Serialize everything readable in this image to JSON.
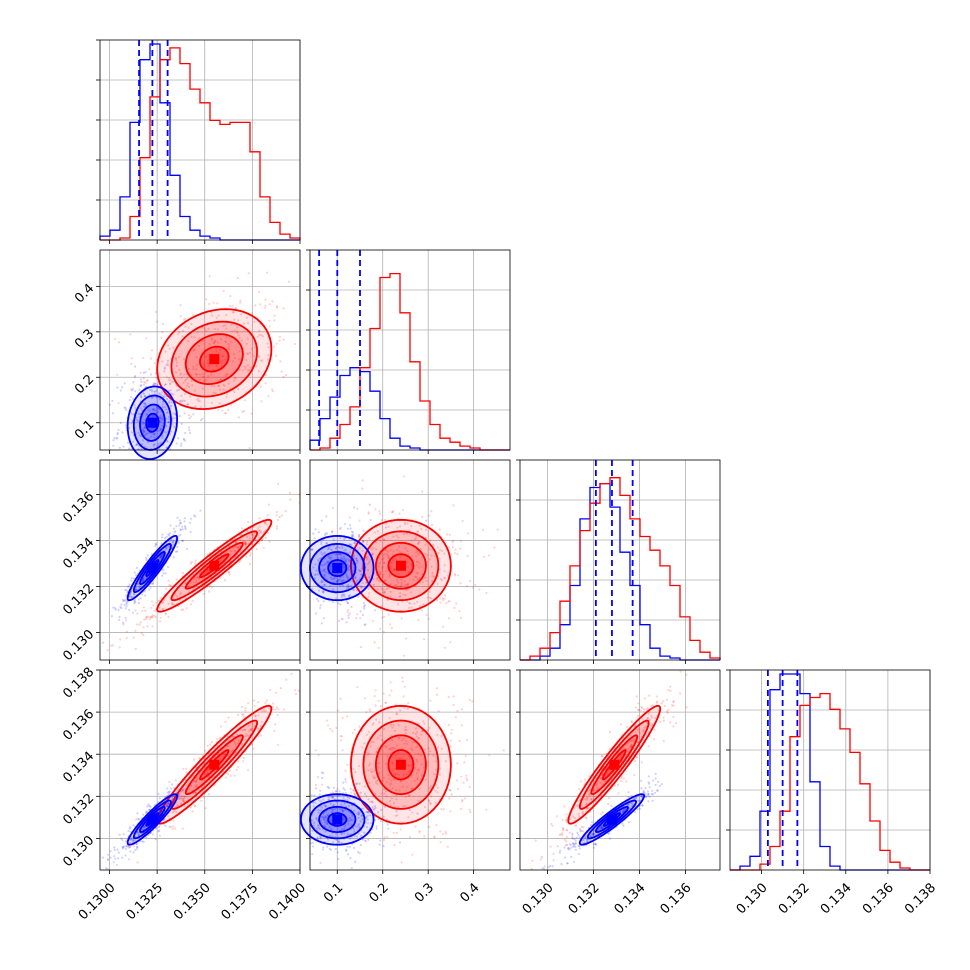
{
  "colors": {
    "blue": "#0000ff",
    "red": "#ff0000",
    "grid": "#b0b0b0"
  },
  "chart_data": {
    "type": "corner",
    "grid": true,
    "params": [
      {
        "id": "p0",
        "range": [
          0.1295,
          0.14
        ],
        "ticks": [
          0.13,
          0.1325,
          0.135,
          0.1375,
          0.14
        ],
        "tick_labels": [
          "0.1300",
          "0.1325",
          "0.1350",
          "0.1375",
          "0.1400"
        ]
      },
      {
        "id": "p1",
        "range": [
          0.04,
          0.48
        ],
        "ticks": [
          0.1,
          0.2,
          0.3,
          0.4
        ],
        "tick_labels": [
          "0.1",
          "0.2",
          "0.3",
          "0.4"
        ]
      },
      {
        "id": "p2",
        "range": [
          0.1288,
          0.1375
        ],
        "ticks": [
          0.13,
          0.132,
          0.134,
          0.136
        ],
        "tick_labels": [
          "0.130",
          "0.132",
          "0.134",
          "0.136"
        ]
      },
      {
        "id": "p3",
        "range": [
          0.1285,
          0.138
        ],
        "ticks": [
          0.13,
          0.132,
          0.134,
          0.136,
          0.138
        ],
        "tick_labels": [
          "0.130",
          "0.132",
          "0.134",
          "0.136",
          "0.138"
        ]
      }
    ],
    "series": [
      {
        "color": "blue",
        "means": [
          0.13225,
          0.1,
          0.1328,
          0.1309
        ],
        "sds": [
          0.00065,
          0.04,
          0.0007,
          0.0006
        ],
        "quantiles": [
          [
            0.13155,
            0.13225,
            0.13305
          ],
          [
            0.06,
            0.1,
            0.15
          ],
          [
            0.1321,
            0.1328,
            0.1337
          ],
          [
            0.1303,
            0.131,
            0.1317
          ]
        ]
      },
      {
        "color": "red",
        "means": [
          0.1355,
          0.24,
          0.1329,
          0.1335
        ],
        "sds": [
          0.0015,
          0.055,
          0.001,
          0.0014
        ]
      }
    ],
    "hists": [
      {
        "blue": [
          0.02,
          0.05,
          0.22,
          0.6,
          0.92,
          1.0,
          0.7,
          0.33,
          0.12,
          0.05,
          0.02,
          0.01,
          0.0,
          0.0,
          0.0,
          0.0,
          0.0,
          0.0,
          0.0,
          0.0
        ],
        "red": [
          0.0,
          0.0,
          0.01,
          0.12,
          0.42,
          0.73,
          0.92,
          0.98,
          0.9,
          0.77,
          0.7,
          0.61,
          0.59,
          0.6,
          0.6,
          0.45,
          0.22,
          0.09,
          0.03,
          0.01
        ]
      },
      {
        "blue": [
          0.05,
          0.16,
          0.27,
          0.38,
          0.42,
          0.4,
          0.3,
          0.16,
          0.06,
          0.02,
          0.01,
          0.0,
          0.0,
          0.0,
          0.0,
          0.0,
          0.0,
          0.0,
          0.0,
          0.0
        ],
        "red": [
          0.0,
          0.01,
          0.06,
          0.13,
          0.22,
          0.42,
          0.62,
          0.88,
          0.9,
          0.7,
          0.45,
          0.25,
          0.13,
          0.06,
          0.04,
          0.02,
          0.01,
          0.0,
          0.0,
          0.0
        ]
      },
      {
        "blue": [
          0.0,
          0.0,
          0.02,
          0.06,
          0.18,
          0.38,
          0.72,
          0.88,
          0.9,
          0.78,
          0.55,
          0.38,
          0.18,
          0.06,
          0.02,
          0.01,
          0.0,
          0.0,
          0.0,
          0.0
        ],
        "red": [
          0.0,
          0.02,
          0.06,
          0.14,
          0.3,
          0.48,
          0.66,
          0.8,
          0.9,
          0.93,
          0.84,
          0.72,
          0.63,
          0.56,
          0.48,
          0.38,
          0.22,
          0.1,
          0.04,
          0.01
        ]
      },
      {
        "blue": [
          0.0,
          0.02,
          0.07,
          0.3,
          0.92,
          1.0,
          1.0,
          0.9,
          0.45,
          0.12,
          0.02,
          0.0,
          0.0,
          0.0,
          0.0,
          0.0,
          0.0,
          0.0,
          0.0,
          0.0
        ],
        "red": [
          0.0,
          0.0,
          0.0,
          0.03,
          0.12,
          0.3,
          0.68,
          0.84,
          0.88,
          0.9,
          0.82,
          0.72,
          0.6,
          0.44,
          0.25,
          0.1,
          0.04,
          0.01,
          0.0,
          0.0
        ]
      }
    ]
  }
}
